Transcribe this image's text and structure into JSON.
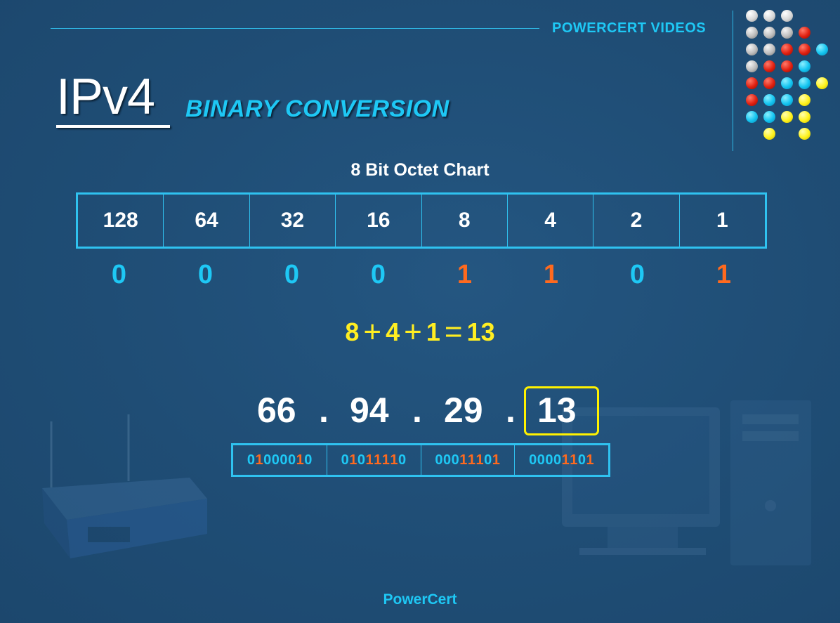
{
  "header": {
    "brand": "POWERCERT VIDEOS"
  },
  "title": {
    "main": "IPv4",
    "subtitle": "BINARY CONVERSION"
  },
  "chart": {
    "label": "8 Bit Octet Chart",
    "values": [
      "128",
      "64",
      "32",
      "16",
      "8",
      "4",
      "2",
      "1"
    ],
    "bits": [
      "0",
      "0",
      "0",
      "0",
      "1",
      "1",
      "0",
      "1"
    ]
  },
  "equation": {
    "terms": [
      "8",
      "4",
      "1"
    ],
    "operator": "+",
    "equals": "=",
    "result": "13"
  },
  "ip": {
    "octets": [
      "66",
      "94",
      "29",
      "13"
    ],
    "separator": ".",
    "binary": [
      "01000010",
      "01011110",
      "00011101",
      "00001101"
    ]
  },
  "footer": {
    "text": "PowerCert"
  },
  "colors": {
    "background": "#1f4d75",
    "accent": "#1ec8f5",
    "one_bit": "#ff6a1e",
    "highlight": "#fff200"
  }
}
